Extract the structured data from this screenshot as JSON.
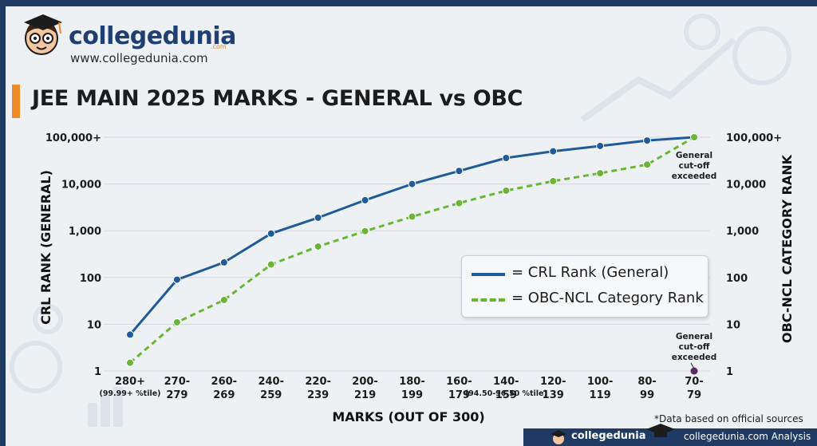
{
  "brand": {
    "name": "collegedunia",
    "tld": ".com",
    "url": "www.collegedunia.com"
  },
  "chart_data": {
    "type": "line",
    "title": "JEE MAIN 2025 MARKS - GENERAL vs OBC",
    "xlabel": "MARKS (OUT OF 300)",
    "ylabel_left": "CRL RANK (GENERAL)",
    "ylabel_right": "OBC-NCL CATEGORY RANK",
    "y_scale": "log",
    "ylim": [
      1,
      100000
    ],
    "y_ticks": [
      "1",
      "10",
      "100",
      "1,000",
      "10,000",
      "100,000+"
    ],
    "categories": [
      "280+",
      "270-279",
      "260-269",
      "240-259",
      "220-239",
      "200-219",
      "180-199",
      "160-179",
      "140-159",
      "120-139",
      "100-119",
      "80-99",
      "70-79"
    ],
    "category_notes": [
      {
        "index": 0,
        "text": "(99.99+ %tile)"
      },
      {
        "index": 8,
        "text": "(94.50-96.50 %tile)"
      }
    ],
    "series": [
      {
        "name": "= CRL Rank (General)",
        "color": "#1f5a99",
        "style": "solid",
        "values": [
          6,
          90,
          210,
          870,
          1900,
          4500,
          10000,
          19000,
          36000,
          50000,
          65000,
          85000,
          100000
        ]
      },
      {
        "name": "= OBC-NCL Category Rank",
        "color": "#6bb536",
        "style": "dashed",
        "values": [
          1.5,
          11,
          33,
          190,
          460,
          980,
          2000,
          3900,
          7200,
          11500,
          17000,
          26000,
          100000
        ]
      }
    ],
    "annotations": [
      {
        "text": [
          "General",
          "cut-off",
          "exceeded"
        ],
        "category_index": 12,
        "value": 100000,
        "color": "#6bb536"
      },
      {
        "text": [
          "General",
          "cut-off",
          "exceeded"
        ],
        "category_index": 12,
        "value": 1,
        "color": "#5a2b5e"
      }
    ],
    "legend": "right-center",
    "grid": true
  },
  "footnote": "*Data based on official sources",
  "footer": {
    "brand": "collegedunia",
    "analysis": "collegedunia.com Analysis"
  }
}
